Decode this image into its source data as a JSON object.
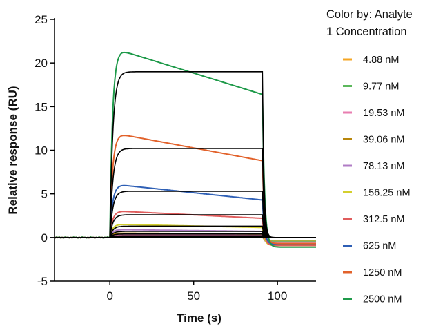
{
  "chart_data": {
    "type": "line",
    "xlabel": "Time (s)",
    "ylabel": "Relative response (RU)",
    "xlim": [
      -33,
      123
    ],
    "ylim": [
      -5,
      25
    ],
    "xticks": [
      0,
      50,
      100
    ],
    "yticks": [
      -5,
      0,
      5,
      10,
      15,
      20,
      25
    ],
    "legend": {
      "title": "Color by: Analyte 1 Concentration",
      "title_lines": [
        "Color by: Analyte",
        "1 Concentration"
      ],
      "placement": "right"
    },
    "association_start": 0,
    "dissociation_start": 91,
    "series": [
      {
        "name": "4.88 nM",
        "color": "#f5a623",
        "peak": 0.08,
        "end": 0.06,
        "fit": 0.05,
        "post": -0.35
      },
      {
        "name": "9.77 nM",
        "color": "#5cb85c",
        "peak": 0.15,
        "end": 0.12,
        "fit": 0.1,
        "post": -0.45
      },
      {
        "name": "19.53 nM",
        "color": "#e87eb0",
        "peak": 0.3,
        "end": 0.25,
        "fit": 0.2,
        "post": -0.55
      },
      {
        "name": "39.06 nM",
        "color": "#b8860b",
        "peak": 0.5,
        "end": 0.4,
        "fit": 0.4,
        "post": -0.7
      },
      {
        "name": "78.13 nM",
        "color": "#b07cc6",
        "peak": 0.9,
        "end": 0.7,
        "fit": 0.7,
        "post": -0.8
      },
      {
        "name": "156.25 nM",
        "color": "#d4cf2e",
        "peak": 1.5,
        "end": 1.15,
        "fit": 1.3,
        "post": -0.9
      },
      {
        "name": "312.5 nM",
        "color": "#e05c5c",
        "peak": 3.0,
        "end": 2.2,
        "fit": 2.6,
        "post": -0.9
      },
      {
        "name": "625 nM",
        "color": "#2e5fb5",
        "peak": 6.0,
        "end": 4.3,
        "fit": 5.3,
        "post": -0.8
      },
      {
        "name": "1250 nM",
        "color": "#e2622b",
        "peak": 11.8,
        "end": 8.8,
        "fit": 10.2,
        "post": -0.7
      },
      {
        "name": "2500 nM",
        "color": "#1f9a4a",
        "peak": 21.4,
        "end": 16.4,
        "fit": 19.0,
        "post": -1.1
      }
    ]
  }
}
